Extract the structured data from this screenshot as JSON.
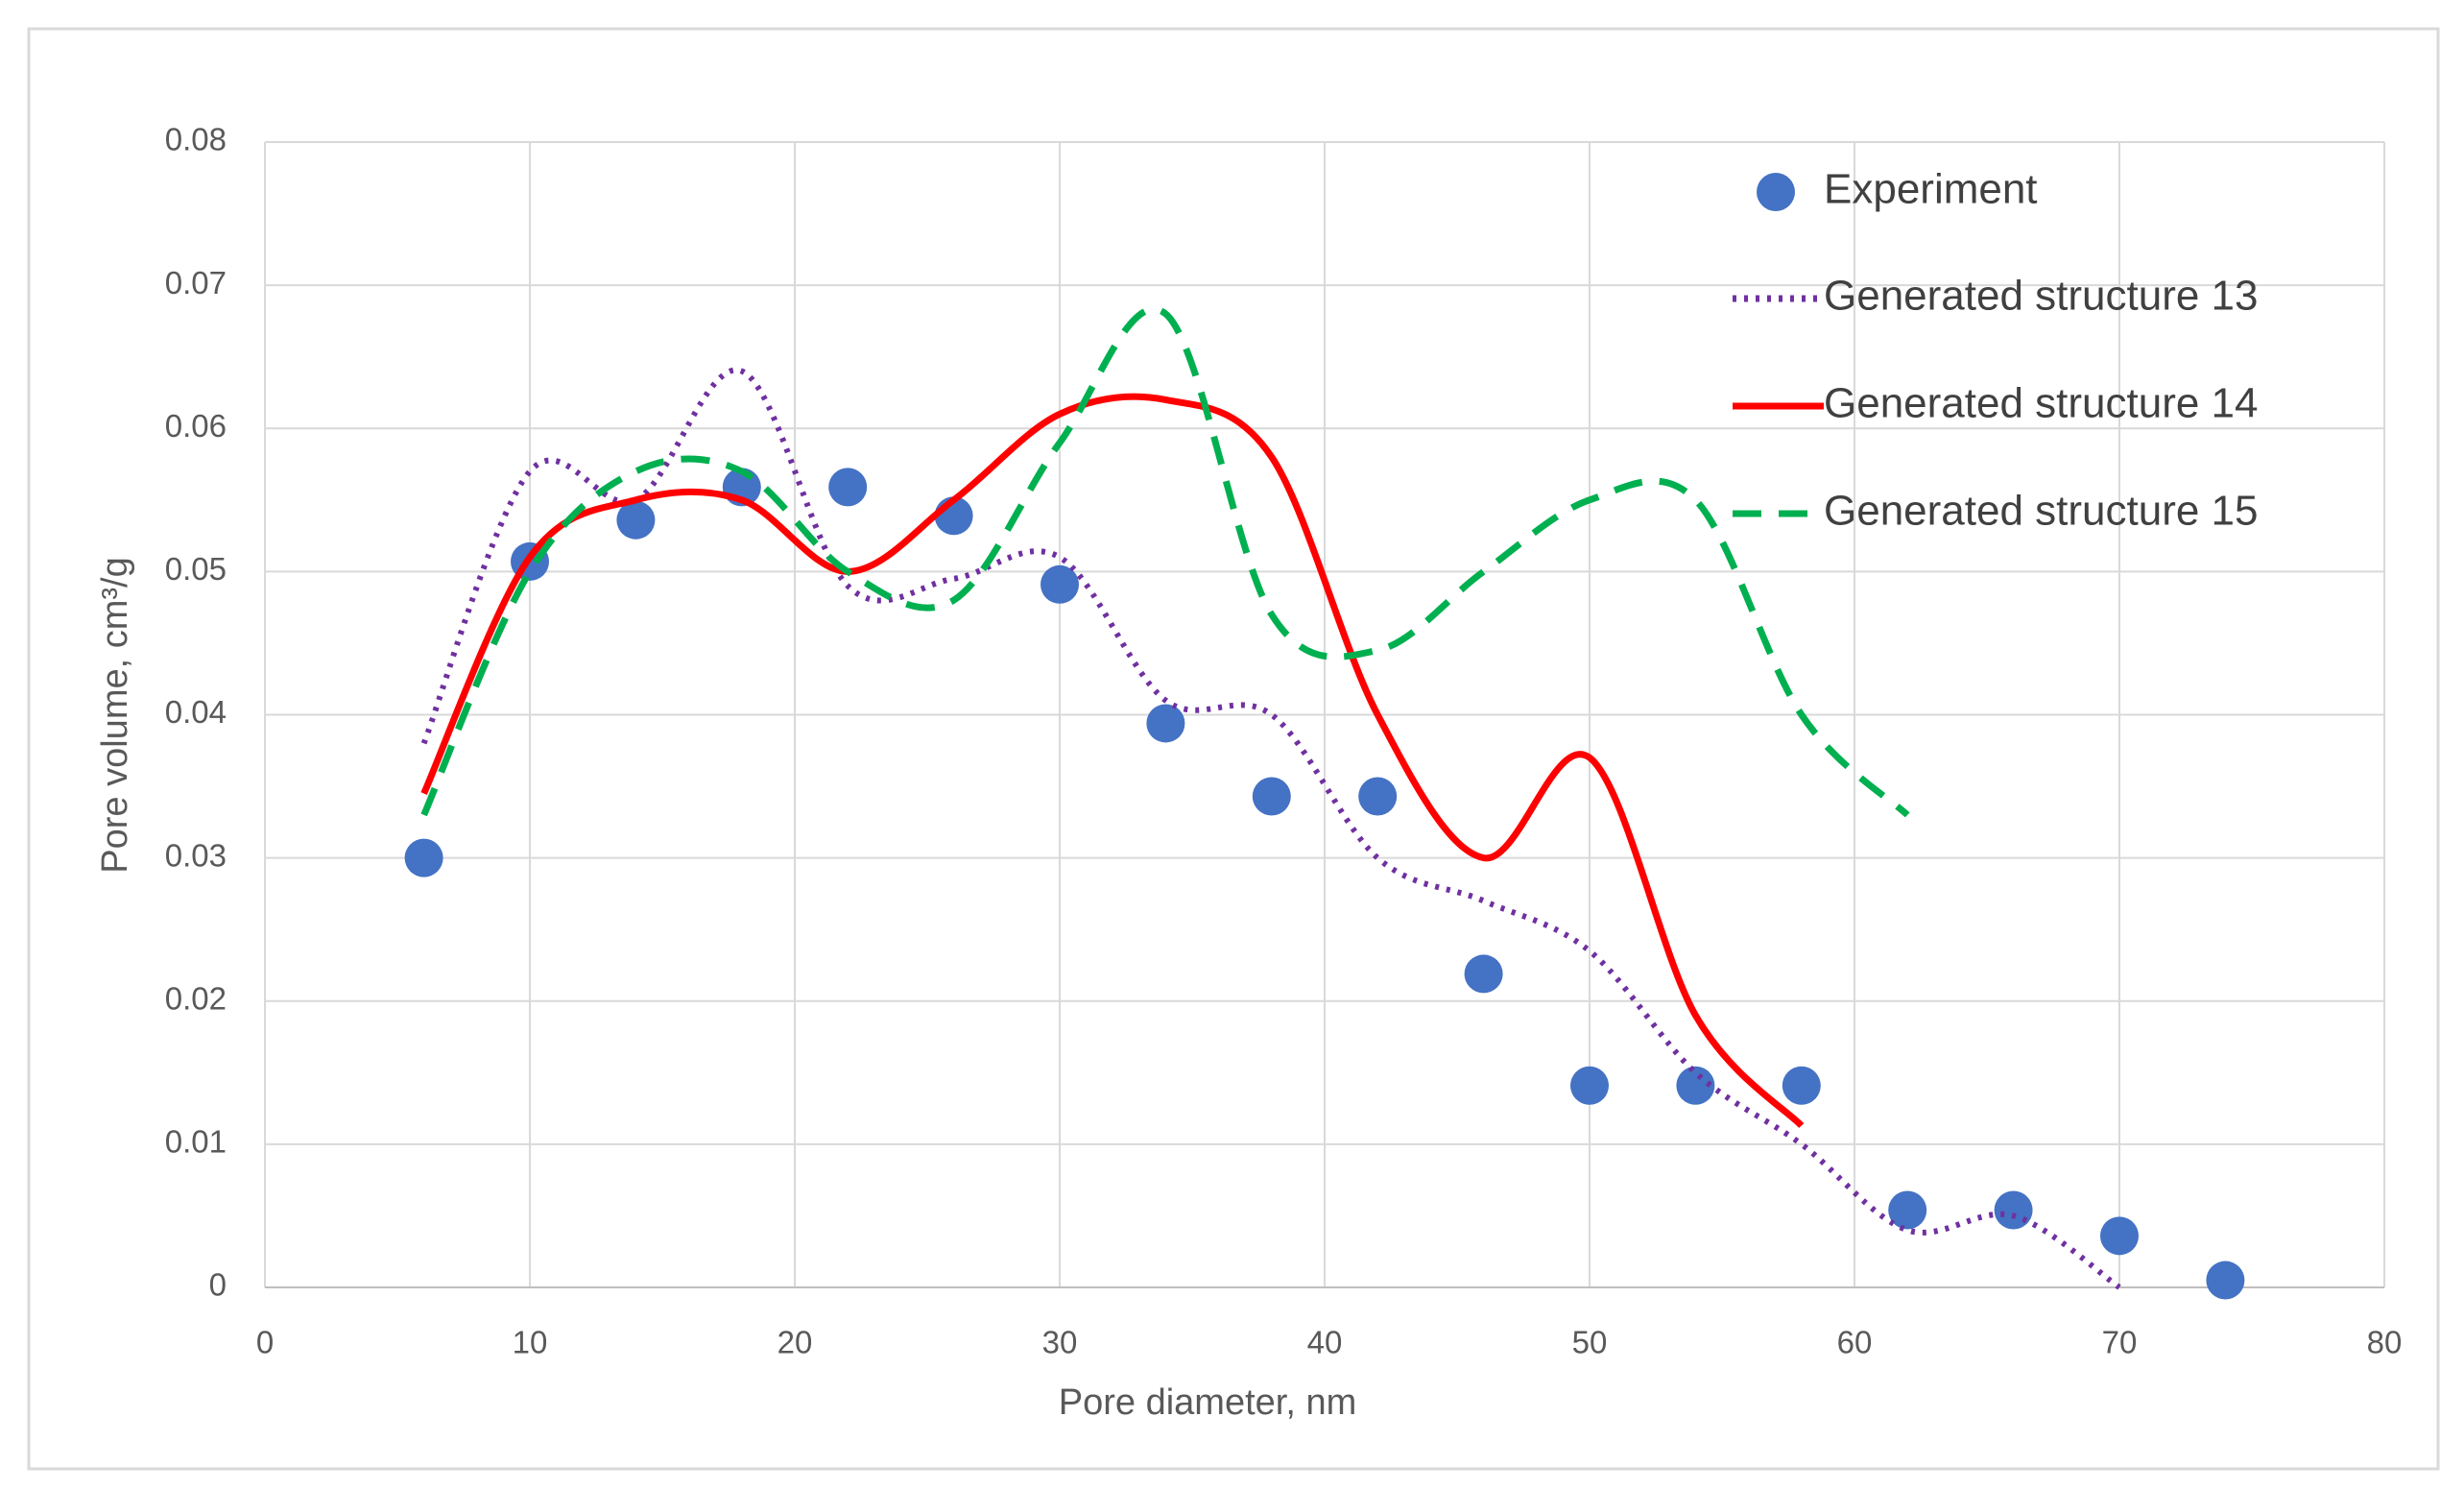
{
  "chart_data": {
    "type": "line",
    "x_label": "Pore diameter, nm",
    "y_label": "Pore volume, cm³/g",
    "xlim": [
      0,
      80
    ],
    "xticks": [
      0,
      10,
      20,
      30,
      40,
      50,
      60,
      70,
      80
    ],
    "ylim": [
      0,
      0.08
    ],
    "yticks": [
      0,
      0.01,
      0.02,
      0.03,
      0.04,
      0.05,
      0.06,
      0.07,
      0.08
    ],
    "grid": true,
    "legend": "upper right",
    "series": [
      {
        "name": "Experiment",
        "color": "#4472c4",
        "style": "marker",
        "x": [
          6,
          10,
          14,
          18,
          22,
          26,
          30,
          34,
          38,
          42,
          46,
          50,
          54,
          58,
          62,
          66,
          70,
          74
        ],
        "values": [
          0.03,
          0.0507,
          0.0536,
          0.0559,
          0.0559,
          0.0539,
          0.0491,
          0.0394,
          0.0343,
          0.0343,
          0.0219,
          0.0141,
          0.0141,
          0.0141,
          0.0054,
          0.0054,
          0.0036,
          0.0005
        ]
      },
      {
        "name": "Generated structure 13",
        "color": "#7030a0",
        "style": "dotted",
        "x": [
          6,
          10,
          14,
          18,
          22,
          26,
          30,
          34,
          38,
          42,
          46,
          50,
          54,
          58,
          62,
          66,
          70
        ],
        "values": [
          0.038,
          0.057,
          0.055,
          0.064,
          0.049,
          0.0495,
          0.051,
          0.041,
          0.04,
          0.03,
          0.027,
          0.0235,
          0.015,
          0.01,
          0.004,
          0.005,
          0
        ]
      },
      {
        "name": "Generated structure 14",
        "color": "#ff0000",
        "style": "solid",
        "x": [
          6,
          10,
          14,
          18,
          22,
          26,
          30,
          34,
          38,
          42,
          46,
          50,
          54,
          58
        ],
        "values": [
          0.0345,
          0.051,
          0.055,
          0.055,
          0.05,
          0.055,
          0.061,
          0.062,
          0.058,
          0.04,
          0.03,
          0.037,
          0.019,
          0.0113
        ]
      },
      {
        "name": "Generated structure 15",
        "color": "#00b050",
        "style": "dashed",
        "x": [
          6,
          10,
          14,
          18,
          22,
          26,
          30,
          34,
          38,
          42,
          46,
          50,
          54,
          58,
          62
        ],
        "values": [
          0.033,
          0.05,
          0.057,
          0.057,
          0.05,
          0.048,
          0.059,
          0.068,
          0.047,
          0.0445,
          0.05,
          0.055,
          0.055,
          0.04,
          0.033
        ]
      }
    ]
  }
}
